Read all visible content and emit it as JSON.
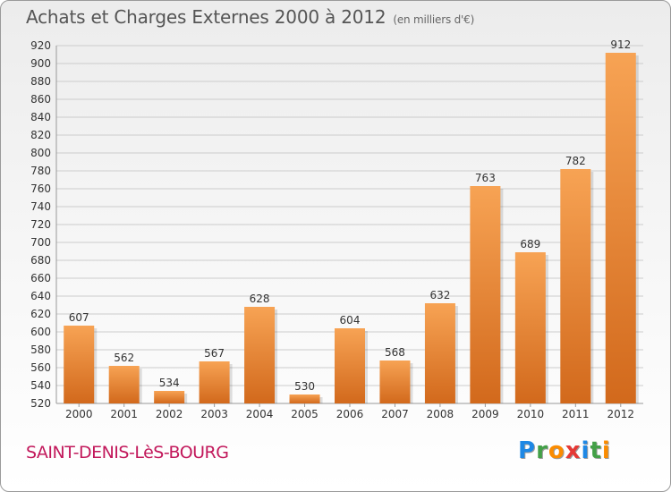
{
  "header": {
    "title": "Achats et Charges Externes 2000 à 2012",
    "unit": "(en milliers d'€)"
  },
  "footer": {
    "city": "SAINT-DENIS-LèS-BOURG",
    "logo": {
      "letters": [
        "P",
        "r",
        "o",
        "x",
        "i",
        "t",
        "i"
      ],
      "colors": [
        "#1e88e5",
        "#43a047",
        "#fb8c00",
        "#e53935",
        "#1e88e5",
        "#43a047",
        "#fb8c00"
      ]
    }
  },
  "colors": {
    "bar_top": "#f7a354",
    "bar_bottom": "#d2691c",
    "grid": "#cccccc",
    "axis_text": "#333333"
  },
  "chart_data": {
    "type": "bar",
    "title": "Achats et Charges Externes 2000 à 2012",
    "categories": [
      "2000",
      "2001",
      "2002",
      "2003",
      "2004",
      "2005",
      "2006",
      "2007",
      "2008",
      "2009",
      "2010",
      "2011",
      "2012"
    ],
    "values": [
      607,
      562,
      534,
      567,
      628,
      530,
      604,
      568,
      632,
      763,
      689,
      782,
      912
    ],
    "ylim": [
      520,
      920
    ],
    "ytick_step": 20,
    "grid": true,
    "data_labels": true
  }
}
